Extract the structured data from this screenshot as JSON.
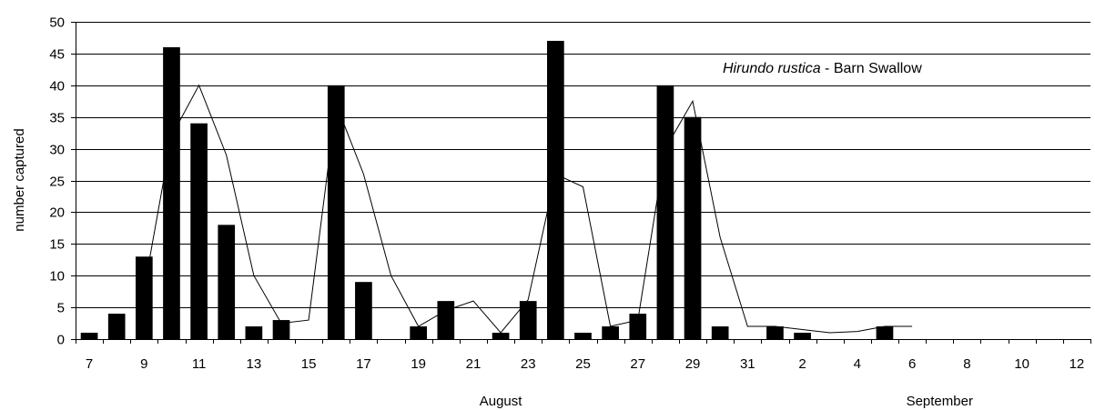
{
  "chart_data": {
    "type": "bar",
    "annotation": {
      "species_italic": "Hirundo rustica",
      "common_name": " - Barn Swallow"
    },
    "ylabel": "number captured",
    "ylim": [
      0,
      50
    ],
    "yticks": [
      0,
      5,
      10,
      15,
      20,
      25,
      30,
      35,
      40,
      45,
      50
    ],
    "grid": true,
    "months": [
      {
        "label": "August",
        "center_day_index": 15
      },
      {
        "label": "September",
        "center_day_index": 31
      }
    ],
    "categories": [
      "7",
      "8",
      "9",
      "10",
      "11",
      "12",
      "13",
      "14",
      "15",
      "16",
      "17",
      "18",
      "19",
      "20",
      "21",
      "22",
      "23",
      "24",
      "25",
      "26",
      "27",
      "28",
      "29",
      "30",
      "31",
      "1",
      "2",
      "3",
      "4",
      "5",
      "6",
      "7",
      "8",
      "9",
      "10",
      "11",
      "12"
    ],
    "category_tick_labels": [
      "7",
      "",
      "9",
      "",
      "11",
      "",
      "13",
      "",
      "15",
      "",
      "17",
      "",
      "19",
      "",
      "21",
      "",
      "23",
      "",
      "25",
      "",
      "27",
      "",
      "29",
      "",
      "31",
      "",
      "2",
      "",
      "4",
      "",
      "6",
      "",
      "8",
      "",
      "10",
      "",
      "12"
    ],
    "series": [
      {
        "style": "bars",
        "values": [
          1,
          4,
          13,
          46,
          34,
          18,
          2,
          3,
          0,
          40,
          9,
          0,
          2,
          6,
          0,
          1,
          6,
          47,
          1,
          2,
          4,
          40,
          35,
          2,
          0,
          2,
          1,
          0,
          0,
          2,
          0,
          0,
          0,
          0,
          0,
          0,
          0
        ]
      },
      {
        "style": "line",
        "values": [
          null,
          null,
          7.8,
          32,
          40,
          29,
          10,
          2.5,
          3,
          37,
          26,
          10,
          2,
          4.5,
          6,
          1,
          6.2,
          26,
          24,
          2,
          3,
          30,
          37.5,
          16,
          2,
          2,
          1.5,
          1,
          1.2,
          2,
          2,
          null,
          null,
          null,
          null,
          null,
          null
        ]
      }
    ]
  }
}
